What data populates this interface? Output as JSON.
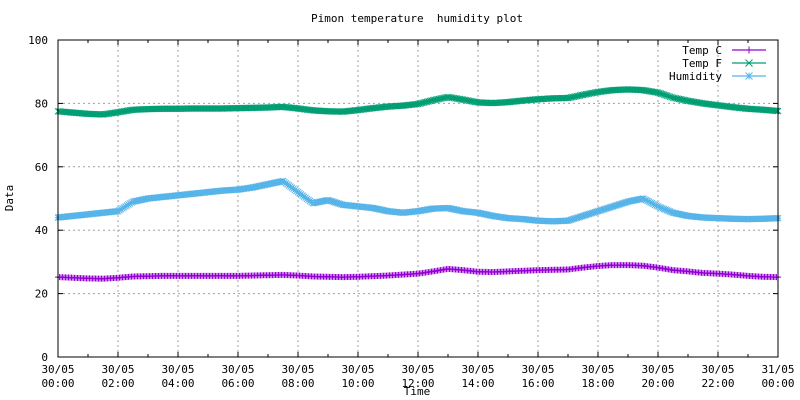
{
  "chart_data": {
    "type": "line",
    "title": "Pimon temperature  humidity plot",
    "xlabel": "Time",
    "ylabel": "Data",
    "ylim": [
      0,
      100
    ],
    "xlim_hours": [
      0,
      24
    ],
    "grid": true,
    "legend_position": "top-right",
    "y_ticks": [
      "0",
      "20",
      "40",
      "60",
      "80",
      "100"
    ],
    "x_ticks": [
      {
        "date": "30/05",
        "time": "00:00"
      },
      {
        "date": "30/05",
        "time": "02:00"
      },
      {
        "date": "30/05",
        "time": "04:00"
      },
      {
        "date": "30/05",
        "time": "06:00"
      },
      {
        "date": "30/05",
        "time": "08:00"
      },
      {
        "date": "30/05",
        "time": "10:00"
      },
      {
        "date": "30/05",
        "time": "12:00"
      },
      {
        "date": "30/05",
        "time": "14:00"
      },
      {
        "date": "30/05",
        "time": "16:00"
      },
      {
        "date": "30/05",
        "time": "18:00"
      },
      {
        "date": "30/05",
        "time": "20:00"
      },
      {
        "date": "30/05",
        "time": "22:00"
      },
      {
        "date": "31/05",
        "time": "00:00"
      }
    ],
    "x": [
      "30/05 00:00",
      "30/05 00:30",
      "30/05 01:00",
      "30/05 01:30",
      "30/05 02:00",
      "30/05 02:30",
      "30/05 03:00",
      "30/05 03:30",
      "30/05 04:00",
      "30/05 04:30",
      "30/05 05:00",
      "30/05 05:30",
      "30/05 06:00",
      "30/05 06:30",
      "30/05 07:00",
      "30/05 07:30",
      "30/05 08:00",
      "30/05 08:30",
      "30/05 09:00",
      "30/05 09:30",
      "30/05 10:00",
      "30/05 10:30",
      "30/05 11:00",
      "30/05 11:30",
      "30/05 12:00",
      "30/05 12:30",
      "30/05 13:00",
      "30/05 13:30",
      "30/05 14:00",
      "30/05 14:30",
      "30/05 15:00",
      "30/05 15:30",
      "30/05 16:00",
      "30/05 16:30",
      "30/05 17:00",
      "30/05 17:30",
      "30/05 18:00",
      "30/05 18:30",
      "30/05 19:00",
      "30/05 19:30",
      "30/05 20:00",
      "30/05 20:30",
      "30/05 21:00",
      "30/05 21:30",
      "30/05 22:00",
      "30/05 22:30",
      "30/05 23:00",
      "30/05 23:30",
      "31/05 00:00"
    ],
    "series": [
      {
        "name": "Temp C",
        "color": "#9400d3",
        "marker": "plus",
        "values": [
          25.2,
          25.0,
          24.8,
          24.7,
          25.0,
          25.4,
          25.5,
          25.6,
          25.6,
          25.6,
          25.6,
          25.6,
          25.6,
          25.7,
          25.8,
          25.9,
          25.7,
          25.4,
          25.3,
          25.2,
          25.3,
          25.5,
          25.7,
          26.0,
          26.3,
          27.0,
          27.8,
          27.4,
          26.9,
          26.8,
          27.0,
          27.2,
          27.4,
          27.5,
          27.6,
          28.2,
          28.7,
          29.0,
          29.0,
          28.8,
          28.2,
          27.4,
          27.0,
          26.5,
          26.3,
          26.0,
          25.6,
          25.3,
          25.2
        ]
      },
      {
        "name": "Temp F",
        "color": "#009e73",
        "marker": "cross",
        "values": [
          77.5,
          77.1,
          76.7,
          76.5,
          77.2,
          78.0,
          78.2,
          78.3,
          78.3,
          78.4,
          78.4,
          78.4,
          78.5,
          78.6,
          78.7,
          78.9,
          78.4,
          77.8,
          77.5,
          77.4,
          77.9,
          78.5,
          79.0,
          79.3,
          79.8,
          81.0,
          82.0,
          81.2,
          80.3,
          80.1,
          80.4,
          80.9,
          81.3,
          81.6,
          81.7,
          82.7,
          83.6,
          84.2,
          84.4,
          84.2,
          83.4,
          81.8,
          80.8,
          80.0,
          79.4,
          78.8,
          78.3,
          78.0,
          77.6
        ]
      },
      {
        "name": "Humidity",
        "color": "#56b4e9",
        "marker": "star",
        "values": [
          44.0,
          44.5,
          45.0,
          45.5,
          46.0,
          49.0,
          50.0,
          50.5,
          51.0,
          51.5,
          52.0,
          52.5,
          52.8,
          53.5,
          54.5,
          55.5,
          52.0,
          48.5,
          49.5,
          48.0,
          47.5,
          47.0,
          46.0,
          45.5,
          46.0,
          46.8,
          47.0,
          46.0,
          45.5,
          44.5,
          43.8,
          43.5,
          43.0,
          42.8,
          43.0,
          44.5,
          46.0,
          47.5,
          49.0,
          50.0,
          47.5,
          45.5,
          44.5,
          44.0,
          43.8,
          43.6,
          43.5,
          43.6,
          43.8
        ]
      }
    ]
  }
}
